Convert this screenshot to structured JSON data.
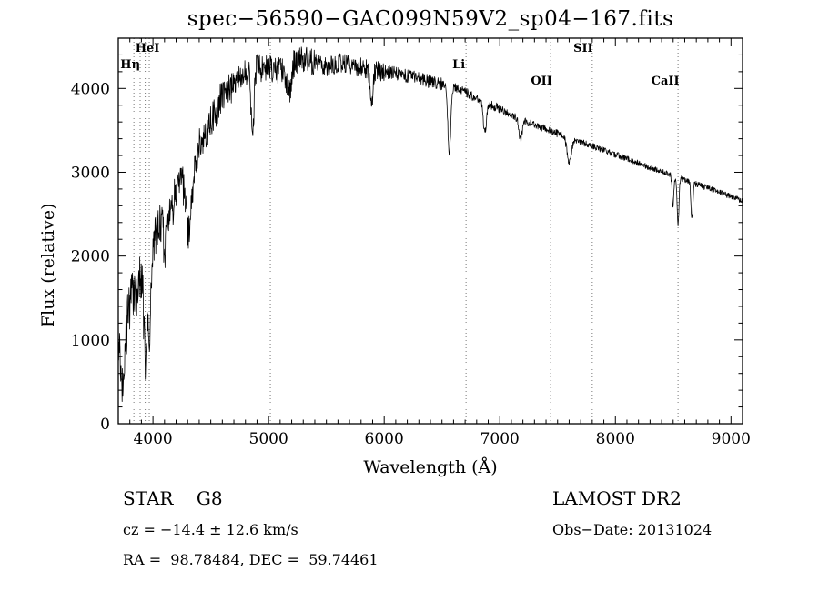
{
  "footer": {
    "class_label": "STAR    G8",
    "survey": "LAMOST DR2",
    "cz": "cz = −14.4 ± 12.6 km/s",
    "obs_date": "Obs−Date: 20131024",
    "coords": "RA =  98.78484, DEC =  59.74461"
  },
  "chart_data": {
    "type": "line",
    "title": "spec−56590−GAC099N59V2_sp04−167.fits",
    "xlabel": "Wavelength (Å)",
    "ylabel": "Flux (relative)",
    "xlim": [
      3700,
      9100
    ],
    "ylim": [
      0,
      4600
    ],
    "x_ticks": [
      4000,
      5000,
      6000,
      7000,
      8000,
      9000
    ],
    "y_ticks": [
      0,
      1000,
      2000,
      3000,
      4000
    ],
    "x_major": 1000,
    "x_minor": 100,
    "y_major": 1000,
    "y_minor": 200,
    "grid": false,
    "legend": "none",
    "line_color": "#000000",
    "marker_color": "#777777",
    "seed": 20131024,
    "sample_step": 3,
    "line_markers": [
      {
        "label": "HeI",
        "wavelength": 3889,
        "row": 1,
        "dx": 8
      },
      {
        "label": "Hη",
        "wavelength": 3835,
        "row": 2,
        "dx": -4
      },
      {
        "label": "",
        "wavelength": 3933,
        "row": 0,
        "dx": 0
      },
      {
        "label": "",
        "wavelength": 3968,
        "row": 0,
        "dx": 0
      },
      {
        "label": "",
        "wavelength": 5015,
        "row": 0,
        "dx": 0
      },
      {
        "label": "Li",
        "wavelength": 6708,
        "row": 2,
        "dx": -8
      },
      {
        "label": "OII",
        "wavelength": 7440,
        "row": 3,
        "dx": -10
      },
      {
        "label": "SII",
        "wavelength": 7800,
        "row": 1,
        "dx": -10
      },
      {
        "label": "CaII",
        "wavelength": 8542,
        "row": 3,
        "dx": -14
      }
    ],
    "continuum": [
      [
        3700,
        950
      ],
      [
        3740,
        750
      ],
      [
        3780,
        1250
      ],
      [
        3820,
        1500
      ],
      [
        3860,
        1600
      ],
      [
        3900,
        1750
      ],
      [
        3940,
        1500
      ],
      [
        3970,
        1600
      ],
      [
        4000,
        2100
      ],
      [
        4050,
        2350
      ],
      [
        4100,
        2600
      ],
      [
        4150,
        2500
      ],
      [
        4200,
        2750
      ],
      [
        4250,
        2850
      ],
      [
        4300,
        3000
      ],
      [
        4350,
        2900
      ],
      [
        4400,
        3350
      ],
      [
        4500,
        3600
      ],
      [
        4600,
        3900
      ],
      [
        4700,
        4050
      ],
      [
        4800,
        4200
      ],
      [
        4900,
        4250
      ],
      [
        5000,
        4250
      ],
      [
        5100,
        4200
      ],
      [
        5200,
        4300
      ],
      [
        5300,
        4350
      ],
      [
        5400,
        4300
      ],
      [
        5500,
        4250
      ],
      [
        5600,
        4300
      ],
      [
        5700,
        4280
      ],
      [
        5800,
        4260
      ],
      [
        5900,
        4220
      ],
      [
        6000,
        4200
      ],
      [
        6100,
        4180
      ],
      [
        6200,
        4150
      ],
      [
        6300,
        4120
      ],
      [
        6400,
        4080
      ],
      [
        6500,
        4060
      ],
      [
        6600,
        4020
      ],
      [
        6700,
        3960
      ],
      [
        6800,
        3880
      ],
      [
        6900,
        3820
      ],
      [
        7000,
        3760
      ],
      [
        7100,
        3680
      ],
      [
        7200,
        3620
      ],
      [
        7300,
        3560
      ],
      [
        7400,
        3520
      ],
      [
        7500,
        3460
      ],
      [
        7600,
        3410
      ],
      [
        7700,
        3360
      ],
      [
        7800,
        3310
      ],
      [
        7900,
        3260
      ],
      [
        8000,
        3210
      ],
      [
        8100,
        3160
      ],
      [
        8200,
        3110
      ],
      [
        8300,
        3060
      ],
      [
        8400,
        3010
      ],
      [
        8500,
        2960
      ],
      [
        8600,
        2910
      ],
      [
        8700,
        2860
      ],
      [
        8800,
        2810
      ],
      [
        8900,
        2760
      ],
      [
        9000,
        2710
      ],
      [
        9050,
        2690
      ],
      [
        9100,
        2650
      ]
    ],
    "noise_regions": [
      [
        3700,
        3950,
        330
      ],
      [
        3950,
        4300,
        260
      ],
      [
        4300,
        4700,
        210
      ],
      [
        4700,
        5400,
        170
      ],
      [
        5400,
        6000,
        120
      ],
      [
        6000,
        6500,
        80
      ],
      [
        6500,
        7000,
        55
      ],
      [
        7000,
        7600,
        45
      ],
      [
        7600,
        8300,
        38
      ],
      [
        8300,
        9101,
        34
      ]
    ],
    "absorption_lines": [
      [
        3745,
        500,
        12
      ],
      [
        3933,
        700,
        12
      ],
      [
        3968,
        600,
        12
      ],
      [
        4101,
        500,
        12
      ],
      [
        4305,
        700,
        18
      ],
      [
        4861,
        800,
        12
      ],
      [
        5175,
        350,
        18
      ],
      [
        5890,
        450,
        12
      ],
      [
        6563,
        850,
        12
      ],
      [
        6870,
        350,
        14
      ],
      [
        7180,
        250,
        14
      ],
      [
        7600,
        300,
        18
      ],
      [
        8498,
        350,
        8
      ],
      [
        8542,
        550,
        8
      ],
      [
        8662,
        450,
        8
      ]
    ]
  }
}
